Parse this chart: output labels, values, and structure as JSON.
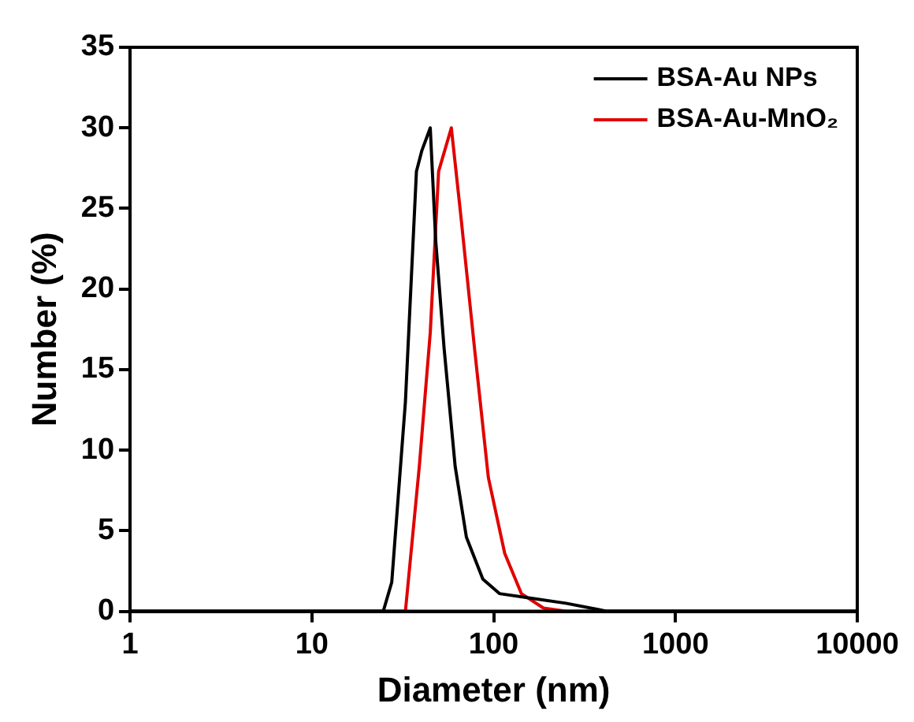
{
  "chart_data": {
    "type": "line",
    "xlabel": "Diameter (nm)",
    "ylabel": "Number (%)",
    "log": "x",
    "xlim": [
      1,
      10000
    ],
    "xticks": [
      1,
      10,
      100,
      1000,
      10000
    ],
    "ylim": [
      0,
      35
    ],
    "yticks": [
      0,
      5,
      10,
      15,
      20,
      25,
      30,
      35
    ],
    "grid": false,
    "legend": "top right",
    "marker": "none",
    "line_style": "solid",
    "series": [
      {
        "name": "BSA-Au NPs",
        "color": "#000000",
        "x": [
          1,
          24.7,
          27.5,
          32.7,
          37.6,
          40.3,
          44.8,
          48,
          53.4,
          61.4,
          70.8,
          87.2,
          107.6,
          164,
          250,
          380,
          420,
          10000
        ],
        "values": [
          0,
          0,
          1.8,
          13,
          27.3,
          28.6,
          30,
          23,
          16.3,
          9,
          4.6,
          2,
          1.1,
          0.8,
          0.5,
          0.1,
          0,
          0
        ]
      },
      {
        "name": "BSA-Au-MnO₂",
        "color": "#e00000",
        "x": [
          1,
          32.7,
          39,
          44.8,
          49.8,
          58.5,
          65.9,
          78.5,
          93.5,
          115,
          142,
          188,
          250,
          10000
        ],
        "values": [
          0,
          0,
          9,
          17.3,
          27.3,
          30,
          24.6,
          16.3,
          8.3,
          3.6,
          1.1,
          0.2,
          0,
          0
        ]
      }
    ]
  }
}
